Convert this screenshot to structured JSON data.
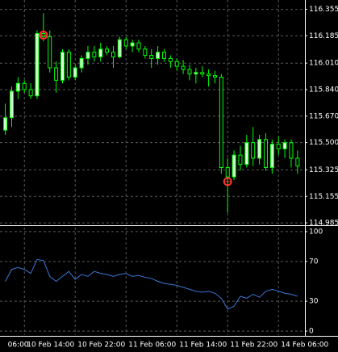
{
  "chart_data": [
    {
      "type": "candlestick",
      "open": [
        115.58,
        115.66,
        115.83,
        115.88,
        115.84,
        115.8,
        116.2,
        116.18,
        115.98,
        115.9,
        116.08,
        115.92,
        115.98,
        116.04,
        116.08,
        116.05,
        116.1,
        116.08,
        116.05,
        116.16,
        116.12,
        116.14,
        116.1,
        116.06,
        116.04,
        116.08,
        116.04,
        116.02,
        115.99,
        115.97,
        115.94,
        115.95,
        115.94,
        115.93,
        115.92,
        115.34,
        115.28,
        115.42,
        115.36,
        115.5,
        115.4,
        115.52,
        115.34,
        115.49,
        115.46,
        115.5,
        115.4
      ],
      "high": [
        115.75,
        115.86,
        115.92,
        115.9,
        115.88,
        116.22,
        116.33,
        116.22,
        116.02,
        116.1,
        116.1,
        116.0,
        116.06,
        116.12,
        116.12,
        116.14,
        116.12,
        116.12,
        116.18,
        116.18,
        116.16,
        116.16,
        116.12,
        116.1,
        116.12,
        116.1,
        116.06,
        116.04,
        116.03,
        116.0,
        115.98,
        115.99,
        115.97,
        115.96,
        115.94,
        115.4,
        115.45,
        115.48,
        115.55,
        115.6,
        115.55,
        115.56,
        115.52,
        115.54,
        115.52,
        115.52,
        115.45
      ],
      "low": [
        115.55,
        115.6,
        115.78,
        115.82,
        115.78,
        115.78,
        116.15,
        115.95,
        115.82,
        115.88,
        115.9,
        115.9,
        115.95,
        116.0,
        116.02,
        116.02,
        116.06,
        115.98,
        116.04,
        116.1,
        116.08,
        116.08,
        116.04,
        115.98,
        116.0,
        116.02,
        115.98,
        115.96,
        115.94,
        115.9,
        115.88,
        115.92,
        115.86,
        115.88,
        115.3,
        115.05,
        115.26,
        115.32,
        115.34,
        115.35,
        115.36,
        115.32,
        115.3,
        115.42,
        115.4,
        115.34,
        115.3
      ],
      "close": [
        115.66,
        115.83,
        115.88,
        115.84,
        115.8,
        116.2,
        116.18,
        115.98,
        115.9,
        116.08,
        115.92,
        115.98,
        116.04,
        116.08,
        116.05,
        116.1,
        116.08,
        116.05,
        116.16,
        116.12,
        116.14,
        116.1,
        116.06,
        116.04,
        116.08,
        116.04,
        116.02,
        115.99,
        115.97,
        115.94,
        115.95,
        115.94,
        115.93,
        115.92,
        115.34,
        115.28,
        115.42,
        115.36,
        115.5,
        115.4,
        115.52,
        115.34,
        115.49,
        115.46,
        115.5,
        115.4,
        115.35
      ],
      "markers": [
        null,
        null,
        null,
        null,
        null,
        null,
        116.19,
        null,
        null,
        null,
        null,
        null,
        null,
        null,
        null,
        null,
        null,
        null,
        null,
        null,
        null,
        null,
        null,
        null,
        null,
        null,
        null,
        null,
        null,
        null,
        null,
        null,
        null,
        null,
        null,
        115.25,
        null,
        null,
        null,
        null,
        null,
        null,
        null,
        null,
        null,
        null,
        null
      ],
      "ylim": [
        114.975,
        116.415
      ],
      "yticks": [
        116.355,
        116.185,
        {
          "value": 116.01,
          "label": "116.010"
        },
        {
          "value": 115.84,
          "label": "115.840"
        },
        {
          "value": 115.67,
          "label": "115.670"
        },
        {
          "value": 115.5,
          "label": "115.500"
        },
        115.325,
        115.155,
        114.985
      ],
      "up_color": "#d8ffd8",
      "down_color": "#000000",
      "wick_color": "#00ff00",
      "marker_color": "#ff3030",
      "grid": true
    },
    {
      "type": "line",
      "x": [
        "06:00",
        null,
        null,
        "10 Feb 14:00",
        null,
        null,
        null,
        null,
        null,
        null,
        null,
        "10 Feb 22:00",
        null,
        null,
        null,
        null,
        null,
        null,
        null,
        "11 Feb 06:00",
        null,
        null,
        null,
        null,
        null,
        null,
        null,
        "11 Feb 14:00",
        null,
        null,
        null,
        null,
        null,
        null,
        null,
        "11 Feb 22:00",
        null,
        null,
        null,
        null,
        null,
        null,
        null,
        "14 Feb 06:00",
        null,
        null,
        null
      ],
      "values": [
        50,
        62,
        64,
        62,
        58,
        72,
        71,
        55,
        50,
        55,
        60,
        52,
        57,
        55,
        60,
        58,
        57,
        55,
        57,
        58,
        55,
        56,
        54,
        53,
        50,
        48,
        47,
        46,
        44,
        42,
        40,
        39,
        40,
        38,
        33,
        22,
        25,
        35,
        33,
        37,
        34,
        40,
        42,
        40,
        38,
        37,
        35
      ],
      "color": "#3c78d8",
      "ylim": [
        -4,
        104
      ],
      "yticks": [
        100,
        70,
        30,
        0
      ],
      "grid": true
    }
  ]
}
